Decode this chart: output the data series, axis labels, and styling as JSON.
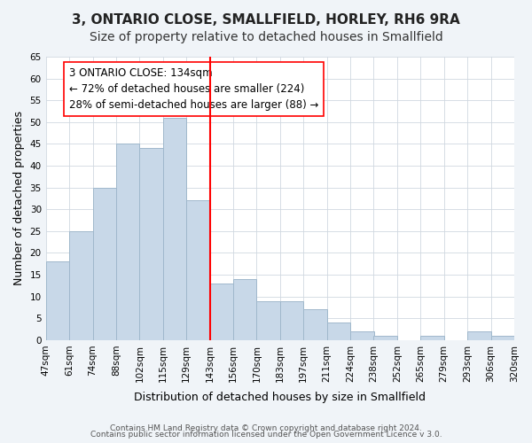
{
  "title": "3, ONTARIO CLOSE, SMALLFIELD, HORLEY, RH6 9RA",
  "subtitle": "Size of property relative to detached houses in Smallfield",
  "xlabel": "Distribution of detached houses by size in Smallfield",
  "ylabel": "Number of detached properties",
  "footer_line1": "Contains HM Land Registry data © Crown copyright and database right 2024.",
  "footer_line2": "Contains public sector information licensed under the Open Government Licence v 3.0.",
  "bin_labels": [
    "47sqm",
    "61sqm",
    "74sqm",
    "88sqm",
    "102sqm",
    "115sqm",
    "129sqm",
    "143sqm",
    "156sqm",
    "170sqm",
    "183sqm",
    "197sqm",
    "211sqm",
    "224sqm",
    "238sqm",
    "252sqm",
    "265sqm",
    "279sqm",
    "293sqm",
    "306sqm",
    "320sqm"
  ],
  "bar_heights": [
    18,
    25,
    35,
    45,
    44,
    51,
    32,
    13,
    14,
    9,
    9,
    7,
    4,
    2,
    1,
    0,
    1,
    0,
    2,
    1
  ],
  "bar_color": "#c8d8e8",
  "bar_edge_color": "#a0b8cc",
  "vline_x": 6.5,
  "vline_color": "red",
  "annotation_text": "3 ONTARIO CLOSE: 134sqm\n← 72% of detached houses are smaller (224)\n28% of semi-detached houses are larger (88) →",
  "annotation_box_edgecolor": "red",
  "annotation_box_facecolor": "white",
  "ylim": [
    0,
    65
  ],
  "yticks": [
    0,
    5,
    10,
    15,
    20,
    25,
    30,
    35,
    40,
    45,
    50,
    55,
    60,
    65
  ],
  "background_color": "#f0f4f8",
  "plot_background_color": "#ffffff",
  "title_fontsize": 11,
  "subtitle_fontsize": 10,
  "axis_label_fontsize": 9,
  "tick_fontsize": 7.5,
  "footer_fontsize": 6.5,
  "annotation_fontsize": 8.5
}
